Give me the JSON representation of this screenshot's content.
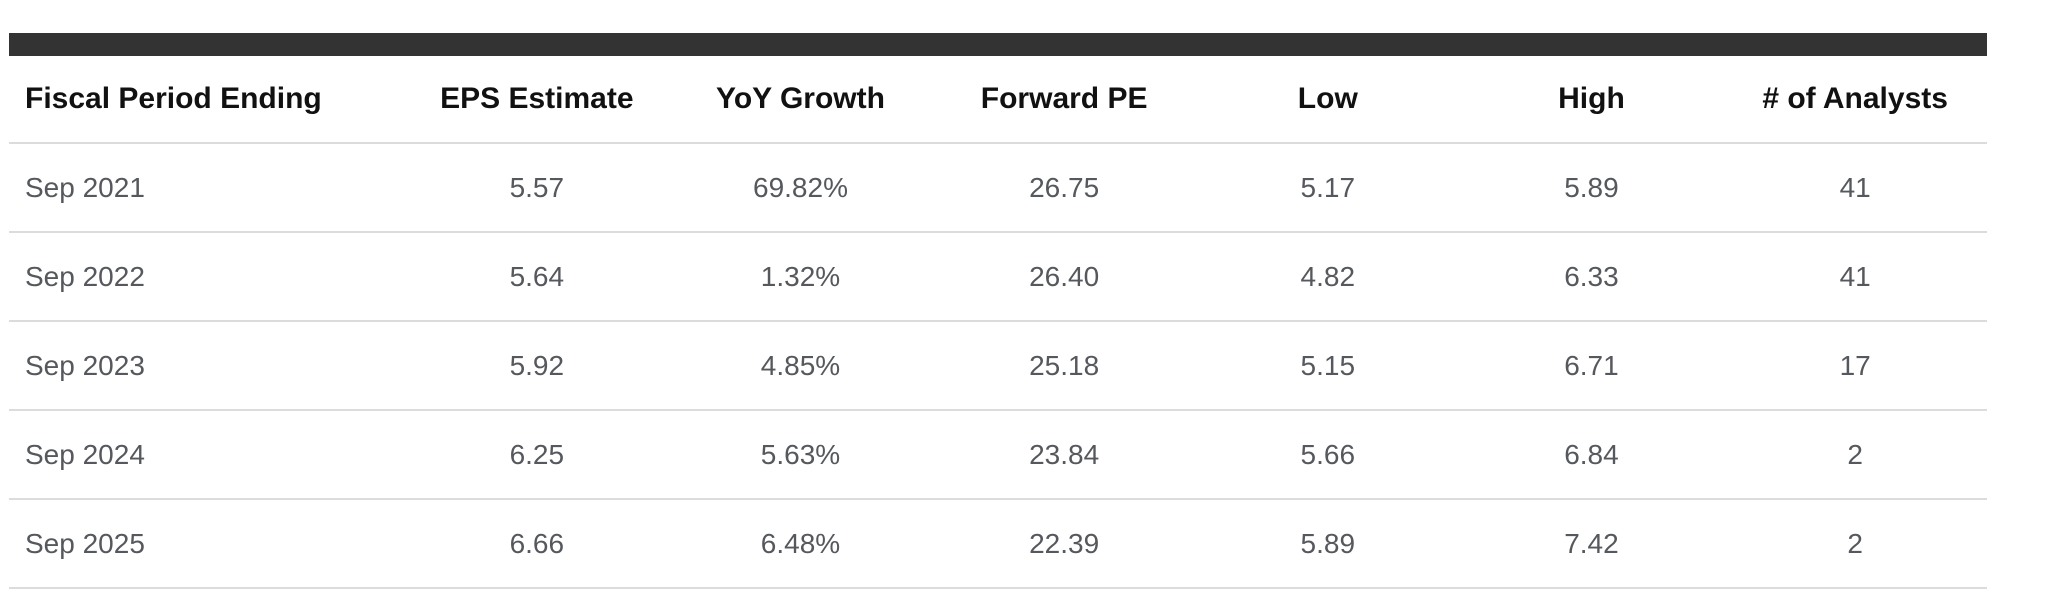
{
  "table": {
    "columns": [
      {
        "label": "Fiscal Period Ending",
        "align": "left"
      },
      {
        "label": "EPS Estimate",
        "align": "center"
      },
      {
        "label": "YoY Growth",
        "align": "center"
      },
      {
        "label": "Forward PE",
        "align": "center"
      },
      {
        "label": "Low",
        "align": "center"
      },
      {
        "label": "High",
        "align": "center"
      },
      {
        "label": "# of Analysts",
        "align": "center"
      }
    ],
    "rows": [
      [
        "Sep 2021",
        "5.57",
        "69.82%",
        "26.75",
        "5.17",
        "5.89",
        "41"
      ],
      [
        "Sep 2022",
        "5.64",
        "1.32%",
        "26.40",
        "4.82",
        "6.33",
        "41"
      ],
      [
        "Sep 2023",
        "5.92",
        "4.85%",
        "25.18",
        "5.15",
        "6.71",
        "17"
      ],
      [
        "Sep 2024",
        "6.25",
        "5.63%",
        "23.84",
        "5.66",
        "6.84",
        "2"
      ],
      [
        "Sep 2025",
        "6.66",
        "6.48%",
        "22.39",
        "5.89",
        "7.42",
        "2"
      ]
    ],
    "colors": {
      "top_bar": "#333333",
      "header_text": "#111111",
      "row_text": "#55585c",
      "divider": "#dcdcdc",
      "page_background": "#ffffff"
    }
  },
  "chart_data": {
    "type": "table",
    "title": "",
    "categories": [
      "Sep 2021",
      "Sep 2022",
      "Sep 2023",
      "Sep 2024",
      "Sep 2025"
    ],
    "series": [
      {
        "name": "EPS Estimate",
        "values": [
          5.57,
          5.64,
          5.92,
          6.25,
          6.66
        ]
      },
      {
        "name": "YoY Growth %",
        "values": [
          69.82,
          1.32,
          4.85,
          5.63,
          6.48
        ]
      },
      {
        "name": "Forward PE",
        "values": [
          26.75,
          26.4,
          25.18,
          23.84,
          22.39
        ]
      },
      {
        "name": "Low",
        "values": [
          5.17,
          4.82,
          5.15,
          5.66,
          5.89
        ]
      },
      {
        "name": "High",
        "values": [
          5.89,
          6.33,
          6.71,
          6.84,
          7.42
        ]
      },
      {
        "name": "# of Analysts",
        "values": [
          41,
          41,
          17,
          2,
          2
        ]
      }
    ]
  }
}
